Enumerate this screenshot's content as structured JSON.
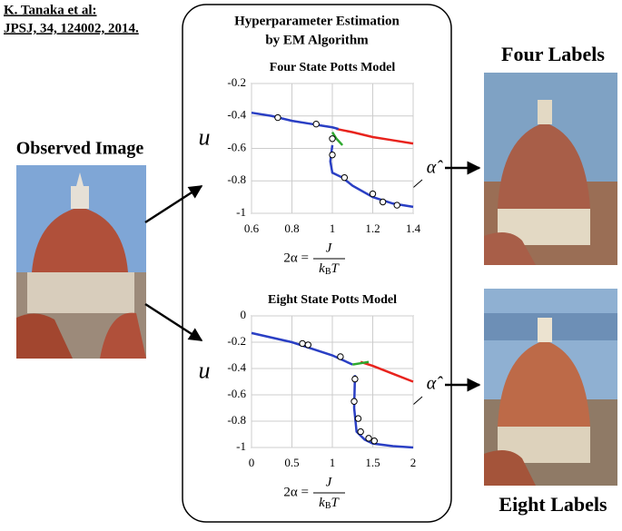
{
  "header": {
    "author": "K. Tanaka et al:",
    "citation": "JPSJ, 34, 124002, 2014."
  },
  "box_title": {
    "line1": "Hyperparameter Estimation",
    "line2": "by EM Algorithm"
  },
  "observed_label": "Observed Image",
  "result_labels": [
    "Four Labels",
    "Eight Labels"
  ],
  "chart_data": [
    {
      "type": "line",
      "title": "Four State Potts Model",
      "ylabel": "u",
      "xlabel": {
        "lhs": "2α =",
        "numerator": "J",
        "denominator": "k",
        "subscript": "B",
        "denominator_end": "T"
      },
      "annotation": "α̂",
      "xlim": [
        0.6,
        1.4
      ],
      "ylim": [
        -1,
        -0.2
      ],
      "xticks": [
        0.6,
        0.8,
        1,
        1.2,
        1.4
      ],
      "yticks": [
        -0.2,
        -0.4,
        -0.6,
        -0.8,
        -1
      ],
      "grid": true,
      "series": [
        {
          "color": "#e8231d",
          "x": [
            1.02,
            1.1,
            1.2,
            1.3,
            1.4
          ],
          "values": [
            -0.48,
            -0.5,
            -0.53,
            -0.55,
            -0.57
          ]
        },
        {
          "color": "#2a3fc4",
          "x": [
            0.6,
            0.7,
            0.8,
            0.9,
            0.95,
            1.0,
            1.03
          ],
          "values": [
            -0.38,
            -0.4,
            -0.43,
            -0.45,
            -0.46,
            -0.47,
            -0.48
          ]
        },
        {
          "color": "#2ea82e",
          "x": [
            1.0,
            1.02,
            1.05
          ],
          "values": [
            -0.5,
            -0.54,
            -0.58
          ]
        },
        {
          "color": "#2a3fc4",
          "x": [
            1.0,
            0.99,
            1.0,
            1.05,
            1.1,
            1.2,
            1.3,
            1.4
          ],
          "values": [
            -0.58,
            -0.68,
            -0.75,
            -0.78,
            -0.83,
            -0.9,
            -0.94,
            -0.96
          ]
        },
        {
          "color": "#ffffff",
          "style": "markers",
          "x": [
            0.73,
            0.92,
            1.0,
            1.0,
            1.06,
            1.2,
            1.25,
            1.32
          ],
          "values": [
            -0.41,
            -0.45,
            -0.54,
            -0.64,
            -0.78,
            -0.88,
            -0.93,
            -0.95
          ]
        }
      ]
    },
    {
      "type": "line",
      "title": "Eight State Potts Model",
      "ylabel": "u",
      "xlabel": {
        "lhs": "2α =",
        "numerator": "J",
        "denominator": "k",
        "subscript": "B",
        "denominator_end": "T"
      },
      "annotation": "α̂",
      "xlim": [
        0,
        2
      ],
      "ylim": [
        -1,
        0
      ],
      "xticks": [
        0,
        0.5,
        1,
        1.5,
        2
      ],
      "yticks": [
        0,
        -0.2,
        -0.4,
        -0.6,
        -0.8,
        -1
      ],
      "grid": true,
      "series": [
        {
          "color": "#e8231d",
          "x": [
            1.35,
            1.5,
            1.75,
            2.0
          ],
          "values": [
            -0.35,
            -0.38,
            -0.44,
            -0.5
          ]
        },
        {
          "color": "#2a3fc4",
          "x": [
            0,
            0.5,
            1.0,
            1.25
          ],
          "values": [
            -0.13,
            -0.2,
            -0.3,
            -0.37
          ]
        },
        {
          "color": "#2ea82e",
          "x": [
            1.25,
            1.35,
            1.45
          ],
          "values": [
            -0.37,
            -0.36,
            -0.35
          ]
        },
        {
          "color": "#2a3fc4",
          "x": [
            1.28,
            1.27,
            1.3,
            1.4,
            1.5,
            1.75,
            2.0
          ],
          "values": [
            -0.45,
            -0.7,
            -0.88,
            -0.94,
            -0.97,
            -0.99,
            -1.0
          ]
        },
        {
          "color": "#ffffff",
          "style": "markers",
          "x": [
            0.63,
            0.7,
            1.1,
            1.28,
            1.27,
            1.32,
            1.35,
            1.45,
            1.52
          ],
          "values": [
            -0.21,
            -0.22,
            -0.31,
            -0.48,
            -0.65,
            -0.78,
            -0.88,
            -0.93,
            -0.95
          ]
        }
      ]
    }
  ]
}
